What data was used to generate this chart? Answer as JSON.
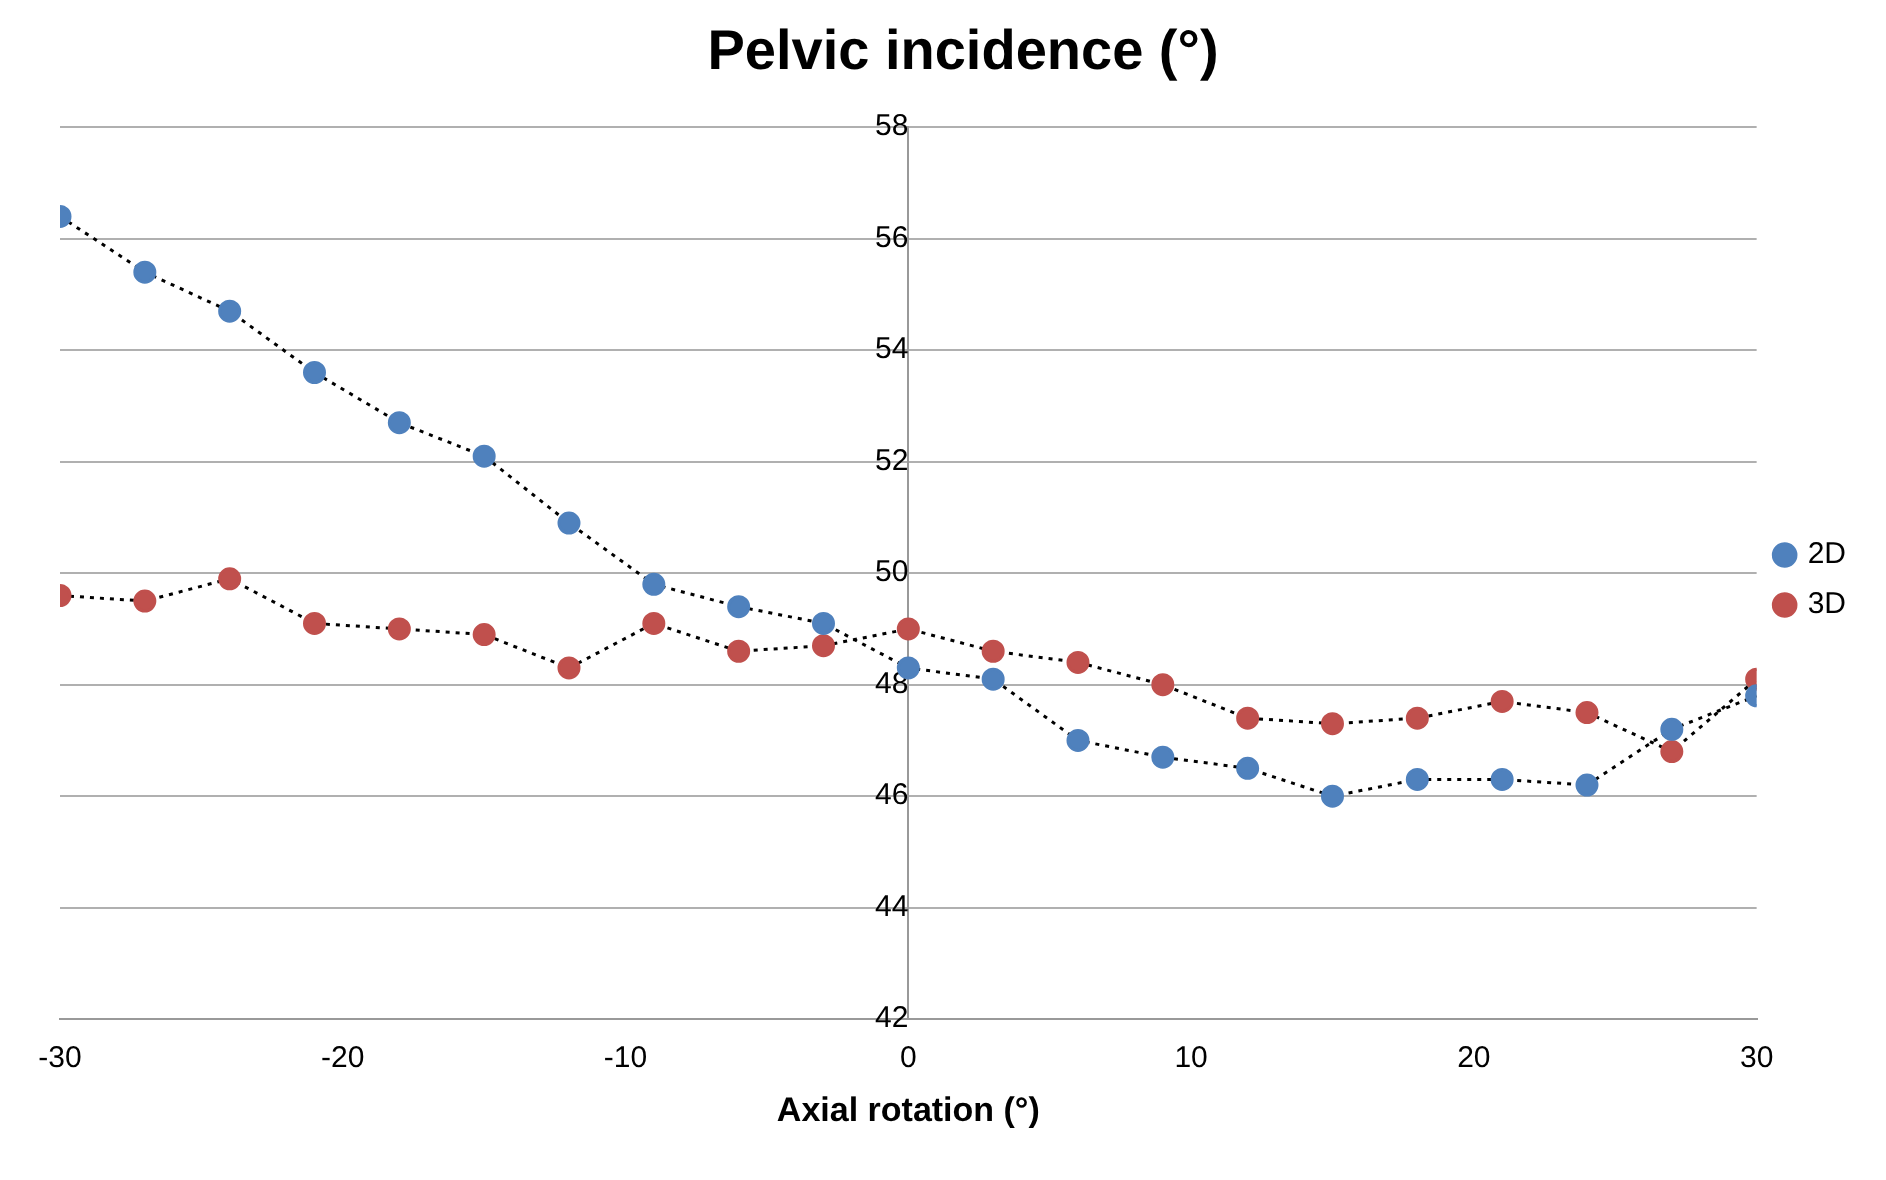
{
  "chart_data": {
    "type": "line",
    "title": "Pelvic incidence (°)",
    "xlabel": "Axial rotation (°)",
    "x": [
      -30,
      -27,
      -24,
      -21,
      -18,
      -15,
      -12,
      -9,
      -6,
      -3,
      0,
      3,
      6,
      9,
      12,
      15,
      18,
      21,
      24,
      27,
      30
    ],
    "series": [
      {
        "name": "2D",
        "color": "#4f81bd",
        "values": [
          56.4,
          55.4,
          54.7,
          53.6,
          52.7,
          52.1,
          50.9,
          49.8,
          49.4,
          49.1,
          48.3,
          48.1,
          47.0,
          46.7,
          46.5,
          46.0,
          46.3,
          46.3,
          46.2,
          47.2,
          47.8
        ]
      },
      {
        "name": "3D",
        "color": "#c0504d",
        "values": [
          49.6,
          49.5,
          49.9,
          49.1,
          49.0,
          48.9,
          48.3,
          49.1,
          48.6,
          48.7,
          49.0,
          48.6,
          48.4,
          48.0,
          47.4,
          47.3,
          47.4,
          47.7,
          47.5,
          46.8,
          48.1
        ]
      }
    ],
    "xlim": [
      -30,
      30
    ],
    "xticks": [
      -30,
      -20,
      -10,
      0,
      10,
      20,
      30
    ],
    "ylim": [
      42,
      58
    ],
    "yticks": [
      42,
      44,
      46,
      48,
      50,
      52,
      54,
      56,
      58
    ],
    "grid": "y",
    "legend": "right",
    "marker": "circle",
    "line_style": "dotted"
  }
}
